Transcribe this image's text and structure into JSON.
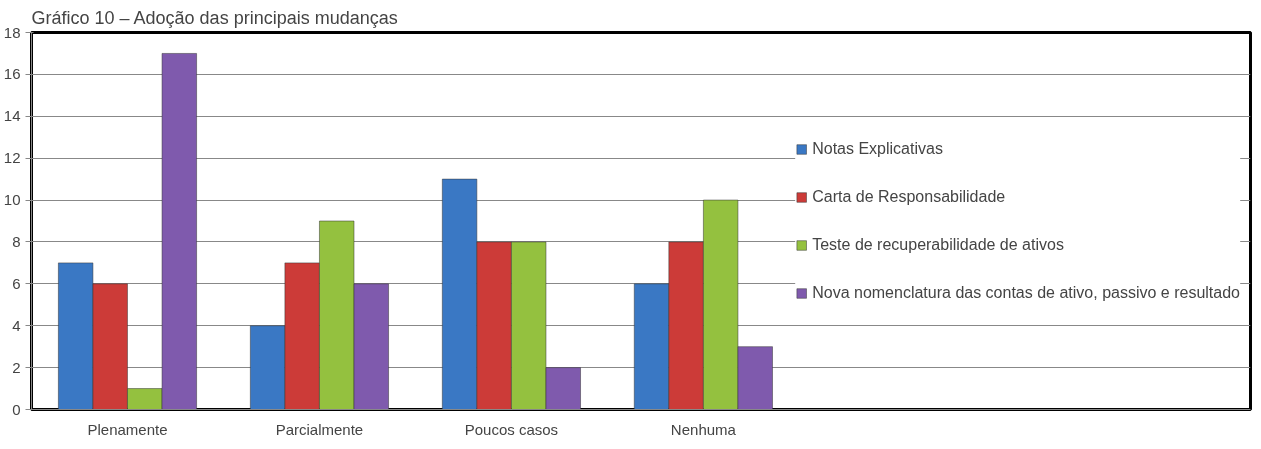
{
  "chart_data": {
    "type": "bar",
    "title": "Gráfico 10 – Adoção das principais mudanças",
    "categories": [
      "Plenamente",
      "Parcialmente",
      "Poucos casos",
      "Nenhuma"
    ],
    "series": [
      {
        "name": "Notas Explicativas",
        "color": "#3a78c4",
        "values": [
          7,
          4,
          11,
          6
        ]
      },
      {
        "name": "Carta de Responsabilidade",
        "color": "#cc3b38",
        "values": [
          6,
          7,
          8,
          8
        ]
      },
      {
        "name": "Teste de recuperabilidade de ativos",
        "color": "#94c13f",
        "values": [
          1,
          9,
          8,
          10
        ]
      },
      {
        "name": "Nova nomenclatura das contas de ativo, passivo e resultado",
        "color": "#7f5aad",
        "values": [
          17,
          6,
          2,
          3
        ]
      }
    ],
    "ylim": [
      0,
      18
    ],
    "yticks": [
      0,
      2,
      4,
      6,
      8,
      10,
      12,
      14,
      16,
      18
    ],
    "grid": "y",
    "legend": "right"
  }
}
